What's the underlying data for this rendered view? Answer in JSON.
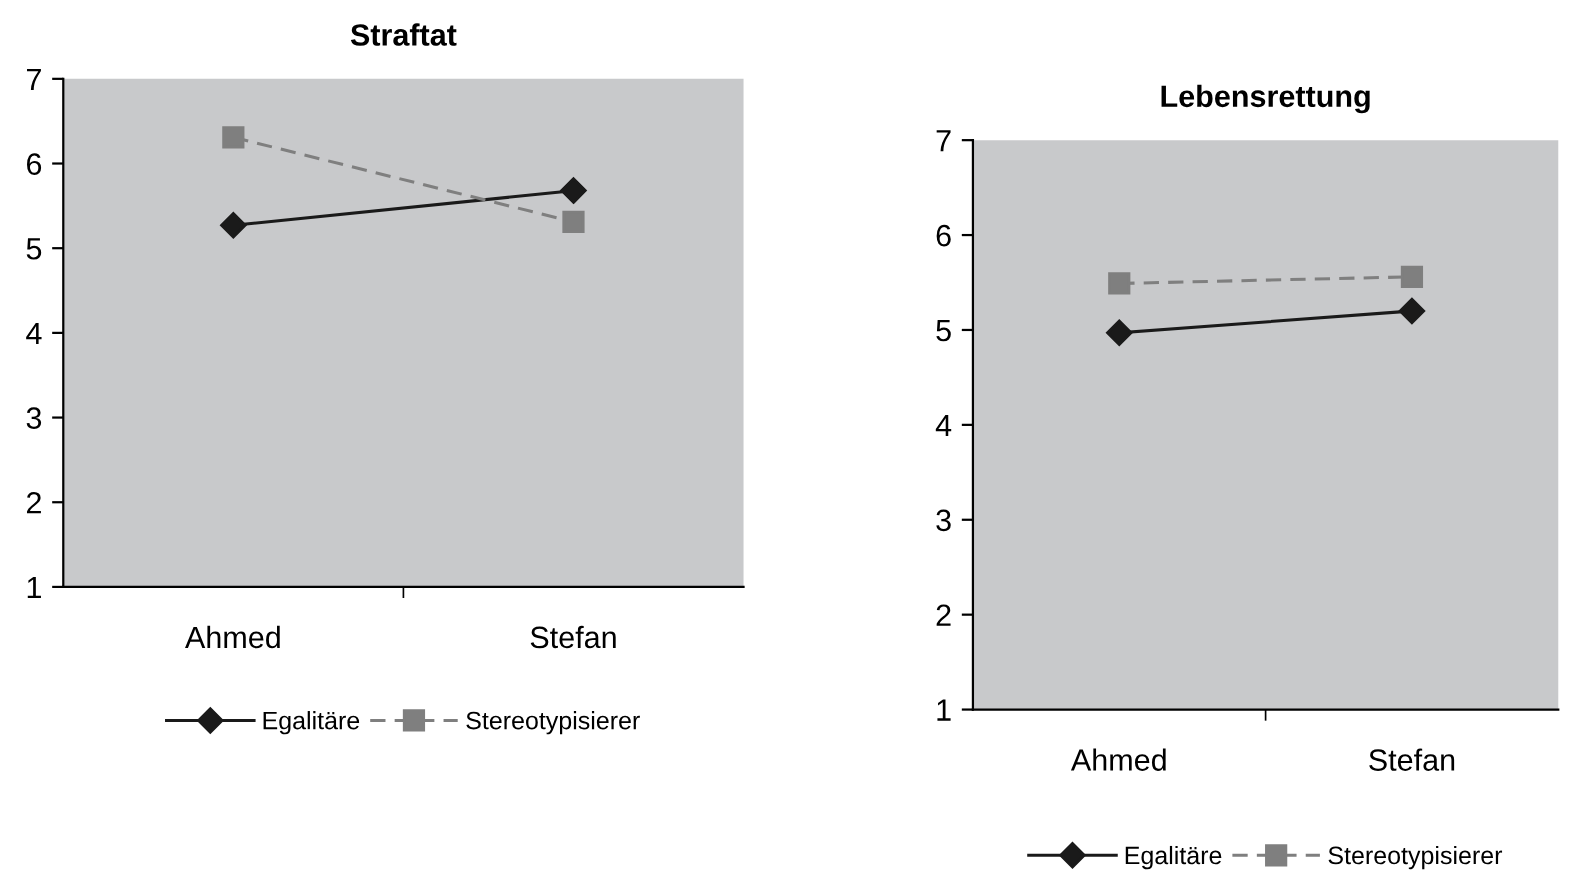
{
  "chart_data": [
    {
      "type": "line",
      "title": "Straftat",
      "categories": [
        "Ahmed",
        "Stefan"
      ],
      "ylim": [
        1,
        7
      ],
      "yticks": [
        1,
        2,
        3,
        4,
        5,
        6,
        7
      ],
      "grid": false,
      "legend": "bottom",
      "series": [
        {
          "name": "Egalitäre",
          "color": "#1a1a1a",
          "values": [
            5.27,
            5.68
          ],
          "marker": "diamond",
          "line_style": "solid"
        },
        {
          "name": "Stereotypisierer",
          "color": "#7f7f7f",
          "values": [
            6.31,
            5.31
          ],
          "marker": "square",
          "line_style": "dashed"
        }
      ]
    },
    {
      "type": "line",
      "title": "Lebensrettung",
      "categories": [
        "Ahmed",
        "Stefan"
      ],
      "ylim": [
        1,
        7
      ],
      "yticks": [
        1,
        2,
        3,
        4,
        5,
        6,
        7
      ],
      "grid": false,
      "legend": "bottom",
      "series": [
        {
          "name": "Egalitäre",
          "color": "#1a1a1a",
          "values": [
            4.97,
            5.2
          ],
          "marker": "diamond",
          "line_style": "solid"
        },
        {
          "name": "Stereotypisierer",
          "color": "#7f7f7f",
          "values": [
            5.49,
            5.56
          ],
          "marker": "square",
          "line_style": "dashed"
        }
      ]
    }
  ]
}
